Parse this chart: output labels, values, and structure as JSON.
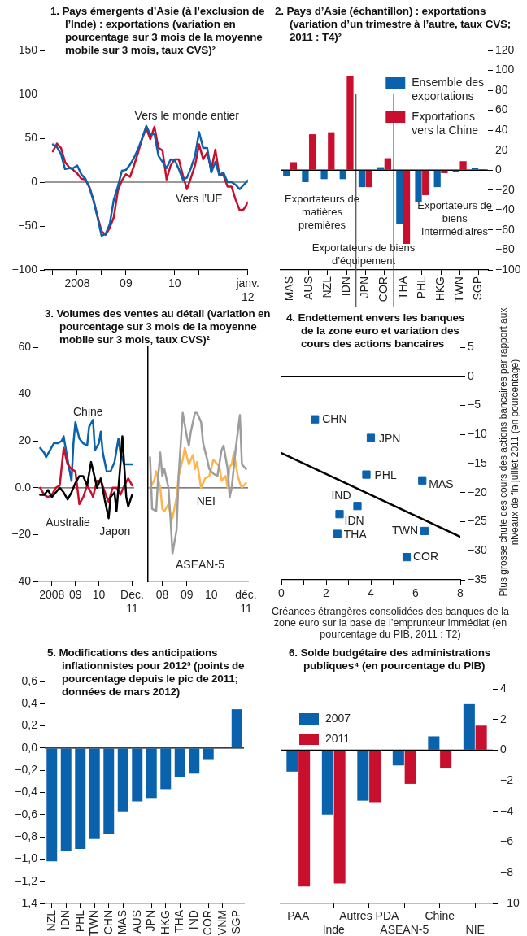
{
  "chart_data": [
    {
      "type": "line",
      "title": "1. Pays émergents d’Asie (à l’exclusion de l’Inde) : exportations (variation en pourcentage sur 3 mois de la moyenne mobile sur 3 mois, taux CVS)²",
      "x": [
        "2008-01",
        "2008-02",
        "2008-03",
        "2008-04",
        "2008-05",
        "2008-06",
        "2008-07",
        "2008-08",
        "2008-09",
        "2008-10",
        "2008-11",
        "2008-12",
        "2009-01",
        "2009-02",
        "2009-03",
        "2009-04",
        "2009-05",
        "2009-06",
        "2009-07",
        "2009-08",
        "2009-09",
        "2009-10",
        "2009-11",
        "2009-12",
        "2010-01",
        "2010-02",
        "2010-03",
        "2010-04",
        "2010-05",
        "2010-06",
        "2010-07",
        "2010-08",
        "2010-09",
        "2010-10",
        "2010-11",
        "2010-12",
        "2011-01",
        "2011-02",
        "2011-03",
        "2011-04",
        "2011-05",
        "2011-06",
        "2011-07",
        "2011-08",
        "2011-09",
        "2011-10",
        "2011-11",
        "2011-12",
        "2012-01"
      ],
      "series": [
        {
          "name": "Vers l’UE",
          "color": "#c8102e",
          "values": [
            35,
            44,
            39,
            23,
            17,
            14,
            10,
            4,
            3,
            -6,
            -20,
            -39,
            -56,
            -60,
            -52,
            -40,
            -10,
            2,
            9,
            6,
            19,
            34,
            50,
            61,
            49,
            63,
            39,
            36,
            3,
            19,
            26,
            26,
            8,
            -8,
            5,
            19,
            43,
            26,
            34,
            14,
            37,
            8,
            8,
            -5,
            -5,
            -20,
            -32,
            -31,
            -23
          ]
        },
        {
          "name": "Vers le monde entier",
          "color": "#0a62ad",
          "values": [
            43,
            40,
            32,
            15,
            16,
            16,
            19,
            9,
            4,
            -6,
            -21,
            -40,
            -61,
            -59,
            -48,
            -20,
            -5,
            13,
            14,
            20,
            28,
            38,
            50,
            64,
            54,
            55,
            30,
            23,
            16,
            26,
            25,
            15,
            3,
            5,
            16,
            30,
            57,
            39,
            39,
            11,
            23,
            8,
            11,
            0,
            0,
            -3,
            -8,
            -3,
            2
          ]
        }
      ],
      "xlim": [
        "2007-11",
        "2012-01"
      ],
      "xticks": [
        {
          "value": "2008-01",
          "label": null
        },
        {
          "value": "2008-07",
          "label": "2008"
        },
        {
          "value": "2009-01",
          "label": null
        },
        {
          "value": "2009-07",
          "label": "09"
        },
        {
          "value": "2010-01",
          "label": null
        },
        {
          "value": "2010-07",
          "label": "10"
        },
        {
          "value": "2011-01",
          "label": null
        },
        {
          "value": "2012-01",
          "label": "janv. 12"
        }
      ],
      "ylim": [
        -100,
        150
      ],
      "yticks": [
        {
          "value": -100,
          "label": "−100"
        },
        {
          "value": -50,
          "label": "−50"
        },
        0,
        50,
        100,
        150
      ],
      "ref_lines": [
        {
          "axis": "y",
          "value": 0,
          "color": "#777777"
        }
      ]
    },
    {
      "type": "bar",
      "title": "2. Pays d’Asie (échantillon) : exportations (variation d’un trimestre à l’autre, taux CVS; 2011 : T4)²",
      "categories": [
        "MAS",
        "AUS",
        "NZL",
        "IDN",
        "JPN",
        "COR",
        "THA",
        "PHL",
        "HKG",
        "TWN",
        "SGP"
      ],
      "series": [
        {
          "name": "Ensemble des exportations",
          "color": "#0a62ad",
          "axis": "y2",
          "values": [
            -6,
            -12,
            -9,
            -9,
            -17,
            3,
            -54,
            -32,
            -17,
            -2,
            2
          ]
        },
        {
          "name": "Exportations vers la Chine",
          "color": "#c8102e",
          "axis": "y2",
          "values": [
            8,
            36,
            38,
            94,
            -17,
            12,
            -74,
            -25,
            -3,
            9,
            1
          ]
        }
      ],
      "y2lim": [
        -100,
        120
      ],
      "y2ticks": [
        {
          "value": -100,
          "label": "−100"
        },
        {
          "value": -80,
          "label": "−80"
        },
        {
          "value": -60,
          "label": "−60"
        },
        {
          "value": -40,
          "label": "−40"
        },
        {
          "value": -20,
          "label": "−20"
        },
        0,
        20,
        40,
        60,
        80,
        100,
        120
      ],
      "legend": "top right",
      "annotations": [
        "Exportateurs de matières premières",
        "Exportateurs de biens d’équipement",
        "Exportateurs de biens intermédiaires"
      ],
      "ref_lines": [
        {
          "axis": "y2",
          "value": 0,
          "color": "#000000"
        }
      ]
    },
    {
      "type": "line",
      "title": "3. Volumes des ventes au détail (variation en pourcentage sur 3 mois de la moyenne mobile sur 3 mois, taux CVS)²",
      "series": [
        {
          "name": "Chine",
          "color": "#0a62ad",
          "x": [
            "2008-01",
            "2008-03",
            "2008-04",
            "2008-06",
            "2008-08",
            "2008-10",
            "2008-12",
            "2009-01",
            "2009-03",
            "2009-05",
            "2009-06",
            "2009-07",
            "2009-09",
            "2009-11",
            "2010-01",
            "2010-02",
            "2010-04",
            "2010-05",
            "2010-07",
            "2010-08",
            "2010-09",
            "2010-11",
            "2011-01",
            "2011-03",
            "2011-05",
            "2011-06",
            "2011-08",
            "2011-10",
            "2011-12"
          ],
          "values": [
            17,
            15,
            13,
            16,
            19,
            19,
            20,
            22,
            12,
            3,
            19,
            28,
            21,
            19,
            18,
            26,
            29,
            16,
            19,
            24,
            15,
            7,
            7,
            11,
            21,
            15,
            10,
            10,
            10
          ]
        },
        {
          "name": "Australie",
          "color": "#c8102e",
          "x": [
            "2008-01",
            "2008-03",
            "2008-05",
            "2008-07",
            "2008-09",
            "2008-11",
            "2008-12",
            "2009-01",
            "2009-03",
            "2009-05",
            "2009-07",
            "2009-09",
            "2009-11",
            "2010-01",
            "2010-03",
            "2010-04",
            "2010-06",
            "2010-08",
            "2010-11",
            "2010-12",
            "2011-02",
            "2011-04",
            "2011-06",
            "2011-08",
            "2011-10",
            "2011-12"
          ],
          "values": [
            0,
            -3,
            -4,
            -3,
            0,
            1,
            9,
            17,
            10,
            8,
            7,
            -7,
            -4,
            1,
            -2,
            -4,
            3,
            3,
            -4,
            -6,
            0,
            0,
            -3,
            1,
            4,
            1
          ]
        },
        {
          "name": "Japon",
          "color": "#000000",
          "x": [
            "2008-01",
            "2008-03",
            "2008-05",
            "2008-07",
            "2008-09",
            "2008-11",
            "2009-01",
            "2009-03",
            "2009-05",
            "2009-07",
            "2009-09",
            "2009-11",
            "2010-01",
            "2010-03",
            "2010-05",
            "2010-06",
            "2010-08",
            "2010-10",
            "2010-12",
            "2011-01",
            "2011-03",
            "2011-04",
            "2011-06",
            "2011-07",
            "2011-09",
            "2011-10",
            "2011-12"
          ],
          "values": [
            -3,
            -3,
            -1,
            -4,
            -2,
            0,
            -2,
            -5,
            -2,
            2,
            5,
            5,
            1,
            11,
            4,
            0,
            4,
            -5,
            -13,
            -4,
            -2,
            -10,
            10,
            22,
            -4,
            -8,
            -3
          ]
        }
      ],
      "xlim": [
        "2007-12",
        "2012-01"
      ],
      "xticks": [
        {
          "value": "2008-07",
          "label": "2008"
        },
        {
          "value": "2009-07",
          "label": "09"
        },
        {
          "value": "2010-07",
          "label": "10"
        },
        {
          "value": "2011-12",
          "label": "Dec. 11"
        }
      ],
      "ylim": [
        -40,
        60
      ],
      "yticks": [
        {
          "value": -40,
          "label": "−40"
        },
        {
          "value": -20,
          "label": "−20"
        },
        {
          "value": 0,
          "label": "0.0"
        },
        20,
        40,
        60
      ],
      "ref_lines": [
        {
          "axis": "y",
          "value": 0,
          "color": "#555555"
        }
      ]
    },
    {
      "type": "line",
      "series": [
        {
          "name": "NEI",
          "color": "#fdb54e",
          "x": [
            "2008-01",
            "2008-03",
            "2008-04",
            "2008-06",
            "2008-07",
            "2008-08",
            "2008-10",
            "2008-11",
            "2008-12",
            "2009-02",
            "2009-03",
            "2009-05",
            "2009-06",
            "2009-08",
            "2009-10",
            "2009-11",
            "2009-12",
            "2010-02",
            "2010-04",
            "2010-06",
            "2010-08",
            "2010-10",
            "2010-11",
            "2010-12",
            "2011-02",
            "2011-03",
            "2011-04",
            "2011-05",
            "2011-06",
            "2011-08",
            "2011-09",
            "2011-10",
            "2011-12"
          ],
          "values": [
            0,
            3,
            7,
            0,
            -9,
            -10,
            -7,
            -11,
            -13,
            -4,
            5,
            12,
            17,
            10,
            14,
            8,
            11,
            0,
            4,
            5,
            12,
            10,
            9,
            3,
            5,
            0,
            9,
            10,
            15,
            5,
            2,
            0,
            2
          ]
        },
        {
          "name": "ASEAN-5",
          "color": "#9d9d9d",
          "x": [
            "2008-01",
            "2008-02",
            "2008-04",
            "2008-05",
            "2008-06",
            "2008-07",
            "2008-08",
            "2008-10",
            "2008-11",
            "2008-12",
            "2009-02",
            "2009-03",
            "2009-05",
            "2009-07",
            "2009-08",
            "2009-09",
            "2009-11",
            "2009-12",
            "2010-02",
            "2010-03",
            "2010-05",
            "2010-06",
            "2010-08",
            "2010-10",
            "2010-12",
            "2011-01",
            "2011-03",
            "2011-04",
            "2011-05",
            "2011-07",
            "2011-09",
            "2011-10",
            "2011-12"
          ],
          "values": [
            13,
            -9,
            -10,
            5,
            15,
            5,
            8,
            0,
            -13,
            -28,
            -18,
            5,
            32,
            22,
            18,
            24,
            32,
            32,
            28,
            19,
            12,
            8,
            6,
            5,
            16,
            18,
            8,
            -4,
            0,
            17,
            31,
            10,
            8
          ]
        }
      ],
      "xlim": [
        "2007-12",
        "2012-01"
      ],
      "xticks": [
        {
          "value": "2008-07",
          "label": "08"
        },
        {
          "value": "2009-07",
          "label": "09"
        },
        {
          "value": "2010-07",
          "label": "10"
        },
        {
          "value": "2011-12",
          "label": "déc. 11"
        }
      ],
      "ylim": [
        -40,
        60
      ],
      "yticks": [
        -40,
        -20,
        0,
        20,
        40,
        60
      ],
      "tick_labels": "x",
      "ref_lines": [
        {
          "axis": "y",
          "value": 0,
          "color": "#555555"
        }
      ]
    },
    {
      "type": "scatter",
      "title": "4. Endettement envers les banques de la zone euro et variation des cours des actions bancaires",
      "xlabel": "Créances étrangères consolidées des banques de la zone euro sur la base de l’emprunteur immédiat (en pourcentage du PIB, 2011 : T2)",
      "y2label": "Plus grosse chute des cours des actions bancaires par rapport aux niveaux de fin juillet 2011 (en pourcentage)",
      "marker": "square",
      "series": [
        {
          "name": "CHN",
          "color": "#0a62ad",
          "axis": "y2",
          "x": [
            1.5
          ],
          "values": [
            -7.4
          ]
        },
        {
          "name": "JPN",
          "color": "#0a62ad",
          "axis": "y2",
          "x": [
            4.0
          ],
          "values": [
            -10.6
          ]
        },
        {
          "name": "PHL",
          "color": "#0a62ad",
          "axis": "y2",
          "x": [
            3.8
          ],
          "values": [
            -16.9
          ]
        },
        {
          "name": "MAS",
          "color": "#0a62ad",
          "axis": "y2",
          "x": [
            6.3
          ],
          "values": [
            -17.9
          ]
        },
        {
          "name": "IND",
          "color": "#0a62ad",
          "axis": "y2",
          "x": [
            3.4
          ],
          "values": [
            -22.3
          ]
        },
        {
          "name": "IDN",
          "color": "#0a62ad",
          "axis": "y2",
          "x": [
            2.6
          ],
          "values": [
            -23.7
          ]
        },
        {
          "name": "THA",
          "color": "#0a62ad",
          "axis": "y2",
          "x": [
            2.5
          ],
          "values": [
            -27.1
          ]
        },
        {
          "name": "TWN",
          "color": "#0a62ad",
          "axis": "y2",
          "x": [
            6.4
          ],
          "values": [
            -26.6
          ]
        },
        {
          "name": "COR",
          "color": "#0a62ad",
          "axis": "y2",
          "x": [
            5.6
          ],
          "values": [
            -31.1
          ]
        },
        {
          "type": "line",
          "color": "#000000",
          "axis": "y2",
          "marker": "none",
          "x": [
            0,
            8
          ],
          "values": [
            -13.2,
            -27.6
          ]
        }
      ],
      "xlim": [
        0,
        8
      ],
      "xticks": [
        0,
        {
          "value": 1,
          "label": null
        },
        2,
        {
          "value": 3,
          "label": null
        },
        4,
        {
          "value": 5,
          "label": null
        },
        6,
        {
          "value": 7,
          "label": null
        },
        8
      ],
      "y2lim": [
        -35,
        5
      ],
      "y2ticks": [
        {
          "value": -35,
          "label": "−35"
        },
        {
          "value": -30,
          "label": "−30"
        },
        {
          "value": -25,
          "label": "−25"
        },
        {
          "value": -20,
          "label": "−20"
        },
        {
          "value": -15,
          "label": "−15"
        },
        {
          "value": -10,
          "label": "−10"
        },
        {
          "value": -5,
          "label": "−5"
        },
        0,
        5
      ],
      "ref_lines": [
        {
          "axis": "y2",
          "value": 0,
          "color": "#000000"
        }
      ]
    },
    {
      "type": "bar",
      "title": "5. Modifications des anticipations inflationnistes pour 2012³ (points de pourcentage depuis le pic de 2011; données de mars 2012)",
      "categories": [
        "NZL",
        "IDN",
        "PHL",
        "TWN",
        "CHN",
        "MAS",
        "AUS",
        "JPN",
        "HKG",
        "THA",
        "IND",
        "COR",
        "VNM",
        "SGP"
      ],
      "values": [
        -1.02,
        -0.93,
        -0.91,
        -0.82,
        -0.77,
        -0.57,
        -0.48,
        -0.45,
        -0.37,
        -0.26,
        -0.23,
        -0.1,
        null,
        0.35
      ],
      "color": "#0a62ad",
      "ylim": [
        -1.4,
        0.6
      ],
      "yticks": [
        {
          "value": -1.4,
          "label": "−1,4"
        },
        {
          "value": -1.2,
          "label": "−1,2"
        },
        {
          "value": -1.0,
          "label": "−1,0"
        },
        {
          "value": -0.8,
          "label": "−0,8"
        },
        {
          "value": -0.6,
          "label": "−0,6"
        },
        {
          "value": -0.4,
          "label": "−0,4"
        },
        {
          "value": -0.2,
          "label": "−0,2"
        },
        {
          "value": 0,
          "label": "0,0"
        },
        {
          "value": 0.2,
          "label": "0,2"
        },
        {
          "value": 0.4,
          "label": "0,4"
        },
        {
          "value": 0.6,
          "label": "0,6"
        }
      ],
      "ref_lines": [
        {
          "axis": "y",
          "value": 0,
          "color": "#000000"
        }
      ]
    },
    {
      "type": "bar",
      "title": "6. Solde budgétaire des administrations publiques⁴ (en pourcentage du PIB)",
      "categories": [
        "PAA",
        "Inde",
        "Autres PDA",
        "ASEAN-5",
        "Chine",
        "NIE"
      ],
      "series": [
        {
          "name": "2007",
          "color": "#0a62ad",
          "axis": "y2",
          "values": [
            -1.4,
            -4.2,
            -3.3,
            -1.0,
            0.9,
            3.0
          ]
        },
        {
          "name": "2011",
          "color": "#c8102e",
          "axis": "y2",
          "values": [
            -8.9,
            -8.7,
            -3.4,
            -2.2,
            -1.2,
            1.6
          ]
        }
      ],
      "y2lim": [
        -10,
        4
      ],
      "y2ticks": [
        {
          "value": -10,
          "label": "−10"
        },
        {
          "value": -8,
          "label": "−8"
        },
        {
          "value": -6,
          "label": "−6"
        },
        {
          "value": -4,
          "label": "−4"
        },
        {
          "value": -2,
          "label": "−2"
        },
        0,
        2,
        4
      ],
      "legend": "top left",
      "ref_lines": [
        {
          "axis": "y2",
          "value": 0,
          "color": "#000000"
        }
      ]
    }
  ]
}
